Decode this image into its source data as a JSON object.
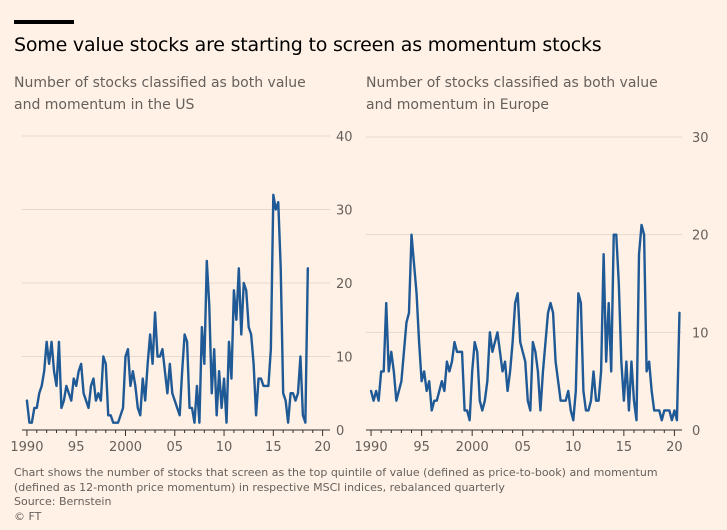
{
  "title": "Some value stocks are starting to screen as momentum stocks",
  "footnote": "Chart shows the number of stocks that screen as the top quintile of value (defined as price-to-book) and momentum",
  "footnote2": "(defined as 12-month price momentum) in respective MSCI indices, rebalanced quarterly",
  "source": "Source: Bernstein",
  "credit": "© FT",
  "colors": {
    "line": "#1F5A96",
    "grid": "#E6D9CE",
    "axis": "#33302E",
    "text": "#66605C"
  },
  "chart_data": [
    {
      "type": "line",
      "title": "Number of stocks classified as both value and momentum in the US",
      "xlim": [
        1989.5,
        2020.75
      ],
      "ylim": [
        0,
        40
      ],
      "yticks": [
        0,
        10,
        20,
        30,
        40
      ],
      "y_axis_side": "right",
      "xticks": [
        {
          "value": 1990,
          "label": "1990"
        },
        {
          "value": 1995,
          "label": "95"
        },
        {
          "value": 2000,
          "label": "2000"
        },
        {
          "value": 2005,
          "label": "05"
        },
        {
          "value": 2010,
          "label": "10"
        },
        {
          "value": 2015,
          "label": "15"
        },
        {
          "value": 2020,
          "label": "20"
        }
      ],
      "series": [
        {
          "start": 1990.0,
          "step": 0.25,
          "values": [
            4,
            1,
            1,
            3,
            3,
            5,
            6,
            8,
            12,
            9,
            12,
            8,
            6,
            12,
            3,
            4,
            6,
            5,
            4,
            7,
            6,
            8,
            9,
            5,
            4,
            3,
            6,
            7,
            4,
            5,
            4,
            10,
            9,
            2,
            2,
            1,
            1,
            1,
            2,
            3,
            10,
            11,
            6,
            8,
            6,
            3,
            2,
            7,
            4,
            9,
            13,
            9,
            16,
            10,
            10,
            11,
            8,
            5,
            9,
            5,
            4,
            3,
            2,
            8,
            13,
            12,
            3,
            3,
            1,
            6,
            1,
            14,
            9,
            23,
            17,
            5,
            11,
            2,
            8,
            3,
            7,
            1,
            12,
            7,
            19,
            15,
            22,
            13,
            20,
            19,
            14,
            13,
            9,
            2,
            7,
            7,
            6,
            6,
            6,
            11,
            32,
            30,
            31,
            22,
            5,
            4,
            1,
            5,
            5,
            4,
            5,
            10,
            2,
            1,
            22
          ]
        }
      ]
    },
    {
      "type": "line",
      "title": "Number of stocks classified as both value and momentum in Europe",
      "xlim": [
        1989.5,
        2020.75
      ],
      "ylim": [
        0,
        30
      ],
      "yticks": [
        0,
        10,
        20,
        30
      ],
      "y_axis_side": "right",
      "xticks": [
        {
          "value": 1990,
          "label": "1990"
        },
        {
          "value": 1995,
          "label": "95"
        },
        {
          "value": 2000,
          "label": "2000"
        },
        {
          "value": 2005,
          "label": "05"
        },
        {
          "value": 2010,
          "label": "10"
        },
        {
          "value": 2015,
          "label": "15"
        },
        {
          "value": 2020,
          "label": "20"
        }
      ],
      "series": [
        {
          "start": 1990.0,
          "step": 0.25,
          "values": [
            4,
            3,
            4,
            3,
            6,
            6,
            13,
            6,
            8,
            6,
            3,
            4,
            5,
            8,
            11,
            12,
            20,
            17,
            14,
            9,
            5,
            6,
            4,
            5,
            2,
            3,
            3,
            4,
            5,
            4,
            7,
            6,
            7,
            9,
            8,
            8,
            8,
            2,
            2,
            1,
            6,
            9,
            8,
            3,
            2,
            3,
            5,
            10,
            8,
            9,
            10,
            8,
            6,
            7,
            4,
            6,
            9,
            13,
            14,
            9,
            8,
            7,
            3,
            2,
            9,
            8,
            6,
            2,
            6,
            9,
            12,
            13,
            12,
            7,
            5,
            3,
            3,
            3,
            4,
            2,
            1,
            4,
            14,
            13,
            4,
            2,
            2,
            3,
            6,
            3,
            3,
            6,
            18,
            7,
            13,
            6,
            20,
            20,
            15,
            7,
            3,
            7,
            2,
            7,
            3,
            1,
            18,
            21,
            20,
            6,
            7,
            4,
            2,
            2,
            2,
            1,
            2,
            2,
            2,
            1,
            2,
            1,
            12
          ]
        }
      ]
    }
  ]
}
